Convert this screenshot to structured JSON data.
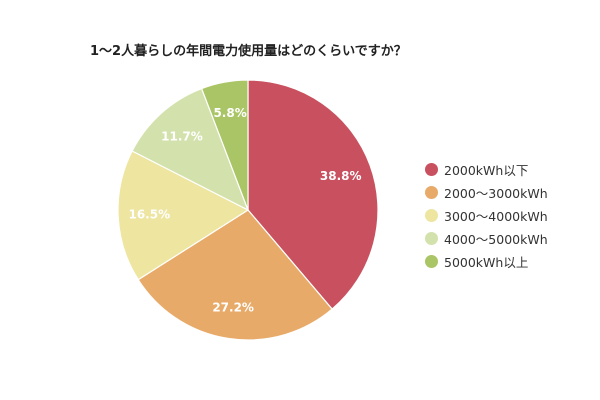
{
  "chart_data": {
    "type": "pie",
    "title": "1〜2人暮らしの年間電力使用量はどのくらいですか？",
    "slices": [
      {
        "label": "2000kWh以下",
        "value": 38.8,
        "display": "38.8%",
        "color": "#c9505f"
      },
      {
        "label": "2000〜3000kWh",
        "value": 27.2,
        "display": "27.2%",
        "color": "#e8aa68"
      },
      {
        "label": "3000〜4000kWh",
        "value": 16.5,
        "display": "16.5%",
        "color": "#ede5a0"
      },
      {
        "label": "4000〜5000kWh",
        "value": 11.7,
        "display": "11.7%",
        "color": "#d3e2ad"
      },
      {
        "label": "5000kWh以上",
        "value": 5.8,
        "display": "5.8%",
        "color": "#a9c565"
      }
    ],
    "legend_position": "right"
  }
}
